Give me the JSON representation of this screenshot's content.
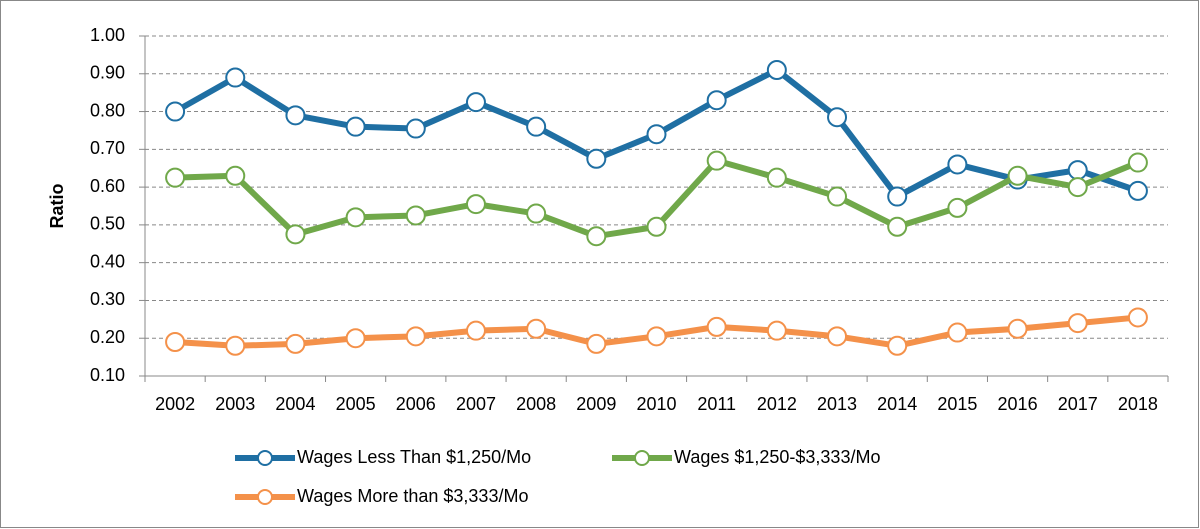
{
  "chart_data": {
    "type": "line",
    "y_label": "Ratio",
    "categories": [
      "2002",
      "2003",
      "2004",
      "2005",
      "2006",
      "2007",
      "2008",
      "2009",
      "2010",
      "2011",
      "2012",
      "2013",
      "2014",
      "2015",
      "2016",
      "2017",
      "2018"
    ],
    "series": [
      {
        "name": "Wages Less Than $1,250/Mo",
        "color": "#1f6fa3",
        "values": [
          0.8,
          0.89,
          0.79,
          0.76,
          0.755,
          0.825,
          0.76,
          0.675,
          0.74,
          0.83,
          0.91,
          0.785,
          0.575,
          0.66,
          0.62,
          0.645,
          0.59
        ]
      },
      {
        "name": "Wages $1,250-$3,333/Mo",
        "color": "#70a84a",
        "values": [
          0.625,
          0.63,
          0.475,
          0.52,
          0.525,
          0.555,
          0.53,
          0.47,
          0.495,
          0.67,
          0.625,
          0.575,
          0.495,
          0.545,
          0.63,
          0.6,
          0.665
        ]
      },
      {
        "name": "Wages More than $3,333/Mo",
        "color": "#f4914a",
        "values": [
          0.19,
          0.18,
          0.185,
          0.2,
          0.205,
          0.22,
          0.225,
          0.185,
          0.205,
          0.23,
          0.22,
          0.205,
          0.18,
          0.215,
          0.225,
          0.24,
          0.255
        ]
      }
    ],
    "ylim": [
      0.1,
      1
    ],
    "yticks": [
      {
        "value": 0.1,
        "label": "0.10"
      },
      {
        "value": 0.2,
        "label": "0.20"
      },
      {
        "value": 0.3,
        "label": "0.30"
      },
      {
        "value": 0.4,
        "label": "0.40"
      },
      {
        "value": 0.5,
        "label": "0.50"
      },
      {
        "value": 0.6,
        "label": "0.60"
      },
      {
        "value": 0.7,
        "label": "0.70"
      },
      {
        "value": 0.8,
        "label": "0.80"
      },
      {
        "value": 0.9,
        "label": "0.90"
      },
      {
        "value": 1,
        "label": "1.00"
      }
    ],
    "grid": true,
    "legend": "bottom"
  }
}
